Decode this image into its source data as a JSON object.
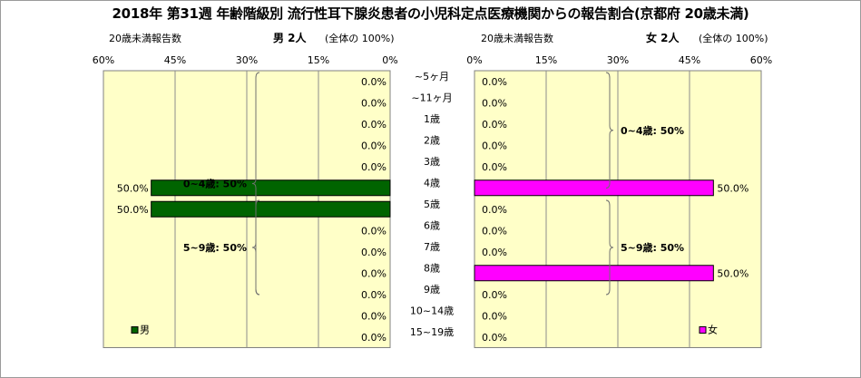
{
  "title": "2018年 第31週 年齢階級別 流行性耳下腺炎患者の小児科定点医療機関からの報告割合(京都府 20歳未満)",
  "left_header": {
    "count_label": "20歳未満報告数",
    "sex_count": "男 2人",
    "share": "(全体の 100%)"
  },
  "right_header": {
    "count_label": "20歳未満報告数",
    "sex_count": "女 2人",
    "share": "(全体の 100%)"
  },
  "colors": {
    "male": "#006400",
    "female": "#ff00ff",
    "plot_bg": "#ffffc8",
    "bar_edge": "#000000"
  },
  "chart_data": [
    {
      "type": "bar",
      "orientation": "horizontal",
      "direction": "right-to-left",
      "categories": [
        "~5ヶ月",
        "~11ヶ月",
        "1歳",
        "2歳",
        "3歳",
        "4歳",
        "5歳",
        "6歳",
        "7歳",
        "8歳",
        "9歳",
        "10~14歳",
        "15~19歳"
      ],
      "series": [
        {
          "name": "男",
          "values": [
            0,
            0,
            0,
            0,
            0,
            50,
            50,
            0,
            0,
            0,
            0,
            0,
            0
          ]
        }
      ],
      "data_labels": [
        "0.0%",
        "0.0%",
        "0.0%",
        "0.0%",
        "0.0%",
        "50.0%",
        "50.0%",
        "0.0%",
        "0.0%",
        "0.0%",
        "0.0%",
        "0.0%",
        "0.0%"
      ],
      "xlim": [
        0,
        60
      ],
      "xticks": [
        "0%",
        "15%",
        "30%",
        "45%",
        "60%"
      ],
      "grid": true,
      "legend": "bottom-left",
      "annotations": [
        {
          "text": "0~4歳: 50%",
          "from": 0,
          "to": 10
        },
        {
          "text": "5~9歳: 50%",
          "from": 6,
          "to": 10
        }
      ]
    },
    {
      "type": "bar",
      "orientation": "horizontal",
      "direction": "left-to-right",
      "categories": [
        "~5ヶ月",
        "~11ヶ月",
        "1歳",
        "2歳",
        "3歳",
        "4歳",
        "5歳",
        "6歳",
        "7歳",
        "8歳",
        "9歳",
        "10~14歳",
        "15~19歳"
      ],
      "series": [
        {
          "name": "女",
          "values": [
            0,
            0,
            0,
            0,
            0,
            50,
            0,
            0,
            0,
            50,
            0,
            0,
            0
          ]
        }
      ],
      "data_labels": [
        "0.0%",
        "0.0%",
        "0.0%",
        "0.0%",
        "0.0%",
        "50.0%",
        "0.0%",
        "0.0%",
        "0.0%",
        "50.0%",
        "0.0%",
        "0.0%",
        "0.0%"
      ],
      "xlim": [
        0,
        60
      ],
      "xticks": [
        "0%",
        "15%",
        "30%",
        "45%",
        "60%"
      ],
      "grid": true,
      "legend": "bottom-right",
      "annotations": [
        {
          "text": "0~4歳: 50%",
          "from": 0,
          "to": 5
        },
        {
          "text": "5~9歳: 50%",
          "from": 6,
          "to": 10
        }
      ]
    }
  ]
}
